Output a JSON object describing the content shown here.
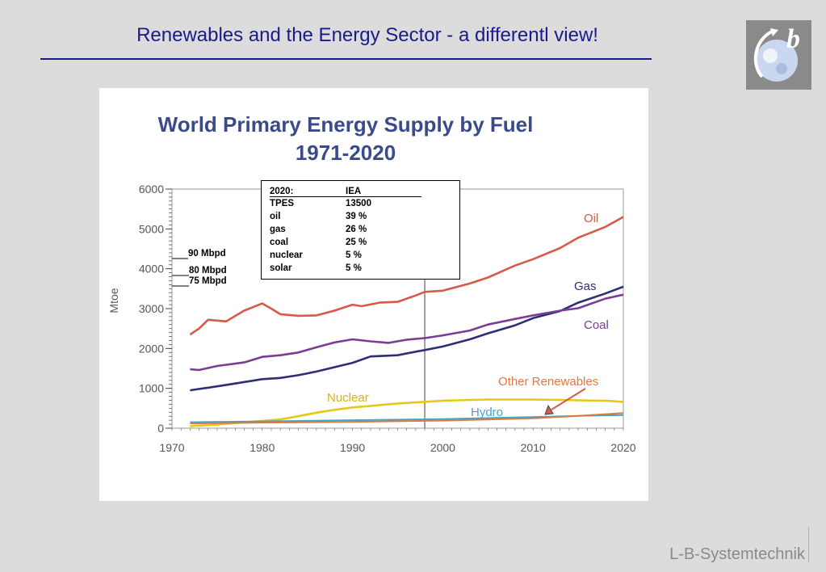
{
  "slide": {
    "title": "Renewables and the Energy Sector - a differentl view!",
    "footer": "L-B-Systemtechnik",
    "accent_color": "#1a1a8c",
    "logo_icon": "moon-b-logo-icon"
  },
  "chart_data": {
    "type": "line",
    "title": "World Primary Energy Supply by Fuel\n1971-2020",
    "title_line1": "World Primary Energy Supply by Fuel",
    "title_line2": "1971-2020",
    "xlabel": "",
    "ylabel": "Mtoe",
    "xlim": [
      1970,
      2020
    ],
    "ylim": [
      0,
      6000
    ],
    "x_ticks": [
      "1970",
      "1980",
      "1990",
      "2000",
      "2010",
      "2020"
    ],
    "y_ticks": [
      "0",
      "1000",
      "2000",
      "3000",
      "4000",
      "5000",
      "6000"
    ],
    "grid": false,
    "vertical_marker_year": 1998,
    "series": [
      {
        "name": "Oil",
        "color": "#d65a48",
        "points": [
          [
            1972,
            2350
          ],
          [
            1973,
            2500
          ],
          [
            1974,
            2720
          ],
          [
            1976,
            2680
          ],
          [
            1978,
            2950
          ],
          [
            1980,
            3130
          ],
          [
            1981,
            3000
          ],
          [
            1982,
            2860
          ],
          [
            1984,
            2820
          ],
          [
            1986,
            2830
          ],
          [
            1988,
            2950
          ],
          [
            1990,
            3100
          ],
          [
            1991,
            3060
          ],
          [
            1993,
            3150
          ],
          [
            1995,
            3170
          ],
          [
            1997,
            3330
          ],
          [
            1998,
            3420
          ],
          [
            2000,
            3450
          ],
          [
            2003,
            3630
          ],
          [
            2005,
            3780
          ],
          [
            2008,
            4080
          ],
          [
            2010,
            4240
          ],
          [
            2013,
            4520
          ],
          [
            2015,
            4780
          ],
          [
            2018,
            5050
          ],
          [
            2020,
            5300
          ]
        ]
      },
      {
        "name": "Gas",
        "color": "#2e2e78",
        "points": [
          [
            1972,
            950
          ],
          [
            1975,
            1050
          ],
          [
            1977,
            1120
          ],
          [
            1980,
            1230
          ],
          [
            1982,
            1260
          ],
          [
            1984,
            1330
          ],
          [
            1986,
            1420
          ],
          [
            1988,
            1530
          ],
          [
            1990,
            1640
          ],
          [
            1992,
            1800
          ],
          [
            1995,
            1830
          ],
          [
            1997,
            1920
          ],
          [
            1998,
            1960
          ],
          [
            2000,
            2050
          ],
          [
            2003,
            2230
          ],
          [
            2005,
            2380
          ],
          [
            2008,
            2580
          ],
          [
            2010,
            2760
          ],
          [
            2013,
            2940
          ],
          [
            2015,
            3150
          ],
          [
            2018,
            3380
          ],
          [
            2020,
            3550
          ]
        ]
      },
      {
        "name": "Coal",
        "color": "#7a3c96",
        "points": [
          [
            1972,
            1480
          ],
          [
            1973,
            1460
          ],
          [
            1975,
            1560
          ],
          [
            1978,
            1650
          ],
          [
            1980,
            1790
          ],
          [
            1982,
            1830
          ],
          [
            1984,
            1900
          ],
          [
            1986,
            2030
          ],
          [
            1988,
            2150
          ],
          [
            1990,
            2230
          ],
          [
            1992,
            2180
          ],
          [
            1994,
            2140
          ],
          [
            1996,
            2220
          ],
          [
            1998,
            2260
          ],
          [
            2000,
            2330
          ],
          [
            2003,
            2450
          ],
          [
            2005,
            2600
          ],
          [
            2008,
            2740
          ],
          [
            2010,
            2830
          ],
          [
            2013,
            2950
          ],
          [
            2015,
            3010
          ],
          [
            2018,
            3250
          ],
          [
            2020,
            3350
          ]
        ]
      },
      {
        "name": "Nuclear",
        "color": "#e8c814",
        "points": [
          [
            1972,
            50
          ],
          [
            1975,
            90
          ],
          [
            1978,
            150
          ],
          [
            1980,
            180
          ],
          [
            1982,
            220
          ],
          [
            1984,
            300
          ],
          [
            1986,
            390
          ],
          [
            1988,
            460
          ],
          [
            1990,
            520
          ],
          [
            1992,
            560
          ],
          [
            1995,
            620
          ],
          [
            1998,
            660
          ],
          [
            2000,
            690
          ],
          [
            2003,
            710
          ],
          [
            2005,
            720
          ],
          [
            2008,
            720
          ],
          [
            2010,
            720
          ],
          [
            2013,
            710
          ],
          [
            2015,
            700
          ],
          [
            2018,
            690
          ],
          [
            2020,
            660
          ]
        ]
      },
      {
        "name": "Hydro",
        "color": "#3aa8c8",
        "points": [
          [
            1972,
            150
          ],
          [
            1980,
            170
          ],
          [
            1990,
            200
          ],
          [
            2000,
            230
          ],
          [
            2010,
            280
          ],
          [
            2015,
            310
          ],
          [
            2020,
            330
          ]
        ]
      },
      {
        "name": "Other Renewables",
        "color": "#e07840",
        "points": [
          [
            1972,
            120
          ],
          [
            1980,
            140
          ],
          [
            1990,
            160
          ],
          [
            2000,
            190
          ],
          [
            2010,
            250
          ],
          [
            2015,
            310
          ],
          [
            2020,
            380
          ]
        ]
      }
    ],
    "annotations": [
      "90 Mbpd",
      "80 Mbpd",
      "75 Mbpd"
    ]
  },
  "info_box": {
    "header": {
      "key": "2020:",
      "value": "IEA"
    },
    "rows": [
      {
        "key": "TPES",
        "value": "13500"
      },
      {
        "key": "oil",
        "value": "39 %"
      },
      {
        "key": "gas",
        "value": "26 %"
      },
      {
        "key": "coal",
        "value": "25 %"
      },
      {
        "key": "nuclear",
        "value": "5 %"
      },
      {
        "key": "solar",
        "value": "5 %"
      }
    ]
  }
}
